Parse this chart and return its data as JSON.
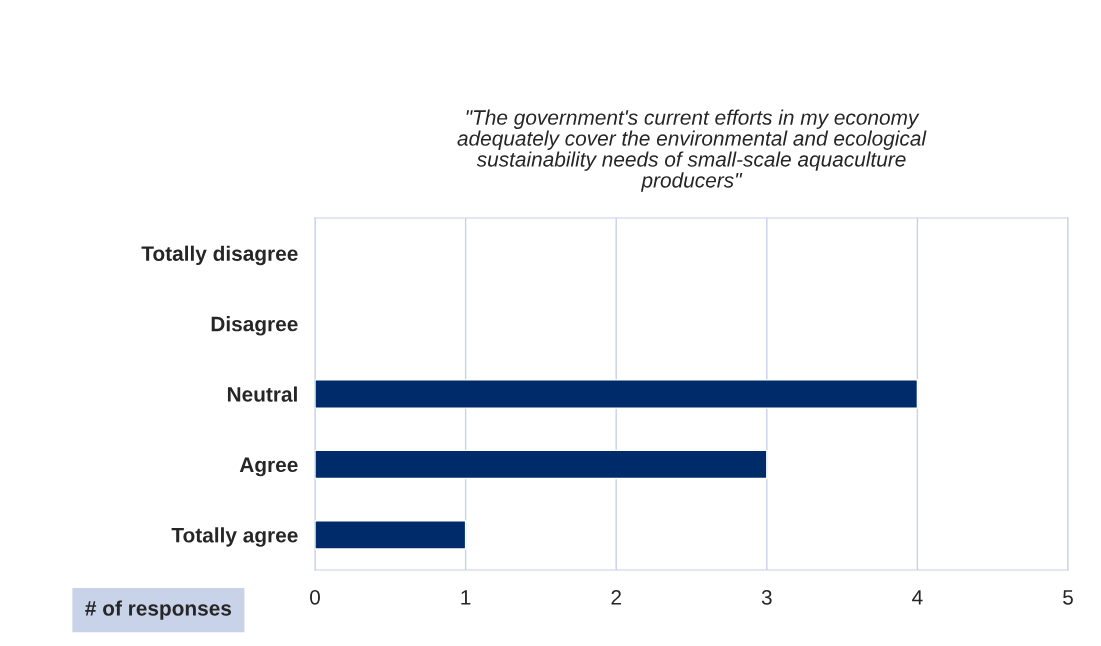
{
  "chart_data": {
    "type": "bar",
    "orientation": "horizontal",
    "title": "\"The government's current efforts in my economy\nadequately cover the environmental and ecological\nsustainability needs of small-scale aquaculture\nproducers\"",
    "xlabel": "# of responses",
    "categories": [
      "Totally disagree",
      "Disagree",
      "Neutral",
      "Agree",
      "Totally agree"
    ],
    "values": [
      0,
      0,
      4,
      3,
      1
    ],
    "color": "#002b6b",
    "xlim": [
      0,
      5
    ],
    "xticks": [
      0,
      1,
      2,
      3,
      4,
      5
    ],
    "grid": "x",
    "legend": false
  }
}
